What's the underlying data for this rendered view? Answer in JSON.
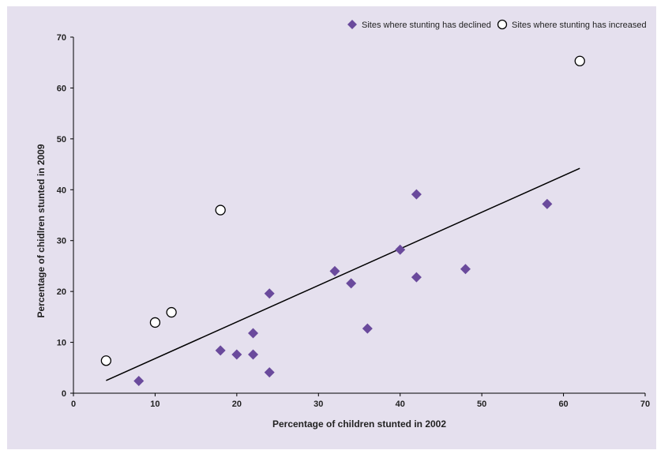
{
  "chart_data": {
    "type": "scatter",
    "xlabel": "Percentage of children stunted in 2002",
    "ylabel": "Percentage of chidlren stunted in 2009",
    "xlim": [
      0,
      70
    ],
    "ylim": [
      0,
      70
    ],
    "xticks": [
      0,
      10,
      20,
      30,
      40,
      50,
      60,
      70
    ],
    "yticks": [
      0,
      10,
      20,
      30,
      40,
      50,
      60,
      70
    ],
    "grid": false,
    "legend_position": "top-right",
    "background_color": "#E5E0EE",
    "series": [
      {
        "name": "Sites where stunting has declined",
        "marker": "diamond",
        "color": "#6A4A9C",
        "points": [
          {
            "x": 8,
            "y": 2.4
          },
          {
            "x": 18,
            "y": 8.4
          },
          {
            "x": 20,
            "y": 7.6
          },
          {
            "x": 22,
            "y": 7.6
          },
          {
            "x": 22,
            "y": 11.8
          },
          {
            "x": 24,
            "y": 4.1
          },
          {
            "x": 24,
            "y": 19.6
          },
          {
            "x": 32,
            "y": 24.0
          },
          {
            "x": 34,
            "y": 21.6
          },
          {
            "x": 36,
            "y": 12.7
          },
          {
            "x": 40,
            "y": 28.2
          },
          {
            "x": 42,
            "y": 39.1
          },
          {
            "x": 42,
            "y": 22.8
          },
          {
            "x": 48,
            "y": 24.4
          },
          {
            "x": 58,
            "y": 37.2
          }
        ]
      },
      {
        "name": "Sites where stunting has increased",
        "marker": "circle-open",
        "color": "#000000",
        "points": [
          {
            "x": 4,
            "y": 6.4
          },
          {
            "x": 10,
            "y": 13.9
          },
          {
            "x": 12,
            "y": 15.9
          },
          {
            "x": 18,
            "y": 36.0
          },
          {
            "x": 62,
            "y": 65.3
          }
        ]
      }
    ],
    "trendline": {
      "type": "linear",
      "color": "#000000",
      "from": {
        "x": 4,
        "y": 2.5
      },
      "to": {
        "x": 62,
        "y": 44.2
      }
    }
  }
}
